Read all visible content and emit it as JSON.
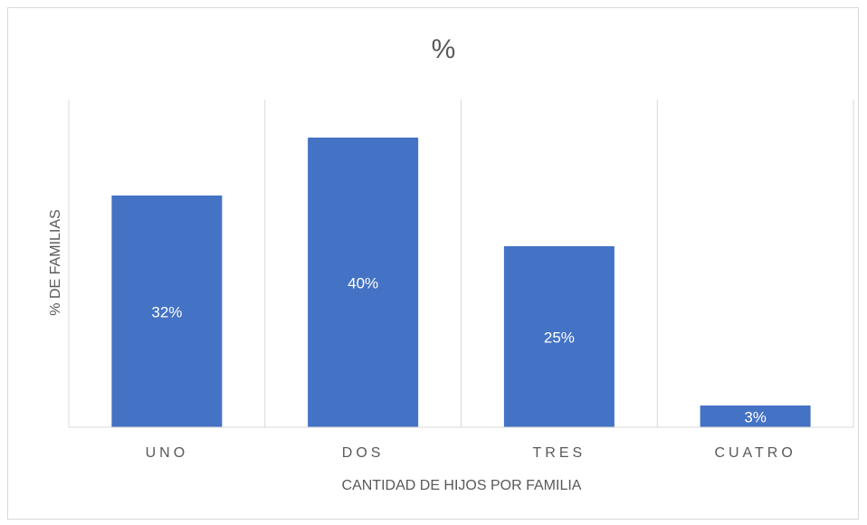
{
  "chart_data": {
    "type": "bar",
    "title": "%",
    "x_label": "CANTIDAD DE HIJOS POR FAMILIA",
    "y_label": "% DE FAMILIAS",
    "categories": [
      "UNO",
      "DOS",
      "TRES",
      "CUATRO"
    ],
    "values": [
      32,
      40,
      25,
      3
    ],
    "value_labels": [
      "32%",
      "40%",
      "25%",
      "3%"
    ],
    "color": "#4472c4",
    "grid": true
  }
}
